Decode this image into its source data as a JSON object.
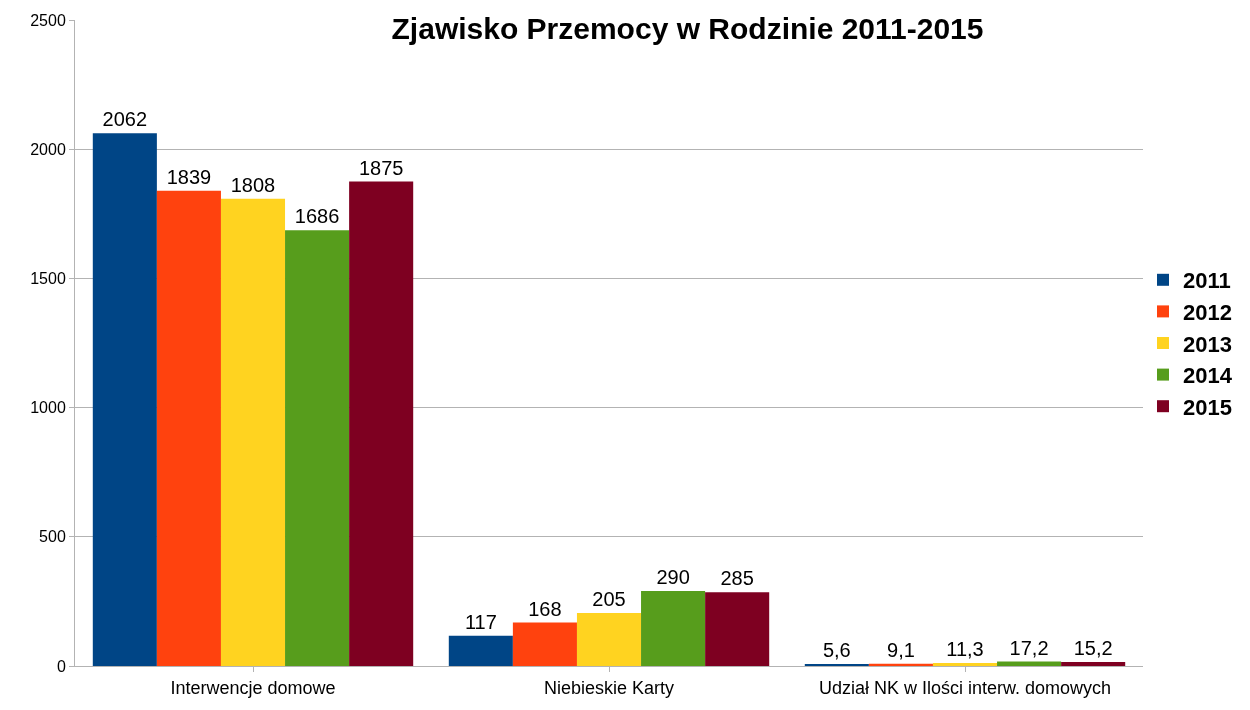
{
  "chart_data": {
    "type": "bar",
    "title": "Zjawisko Przemocy w Rodzinie 2011-2015",
    "categories": [
      "Interwencje domowe",
      "Niebieskie Karty",
      "Udział NK w Ilości interw. domowych"
    ],
    "series": [
      {
        "name": "2011",
        "color": "#004586",
        "values": [
          2062,
          117,
          5.6
        ],
        "value_labels": [
          "2062",
          "117",
          "5,6"
        ]
      },
      {
        "name": "2012",
        "color": "#ff420e",
        "values": [
          1839,
          168,
          9.1
        ],
        "value_labels": [
          "1839",
          "168",
          "9,1"
        ]
      },
      {
        "name": "2013",
        "color": "#ffd320",
        "values": [
          1808,
          205,
          11.3
        ],
        "value_labels": [
          "1808",
          "205",
          "11,3"
        ]
      },
      {
        "name": "2014",
        "color": "#579d1c",
        "values": [
          1686,
          290,
          17.2
        ],
        "value_labels": [
          "1686",
          "290",
          "17,2"
        ]
      },
      {
        "name": "2015",
        "color": "#7e0021",
        "values": [
          1875,
          285,
          15.2
        ],
        "value_labels": [
          "1875",
          "285",
          "15,2"
        ]
      }
    ],
    "ylim": [
      0,
      2500
    ],
    "yticks": [
      0,
      500,
      1000,
      1500,
      2000,
      2500
    ],
    "grid": "y",
    "legend": "right"
  }
}
